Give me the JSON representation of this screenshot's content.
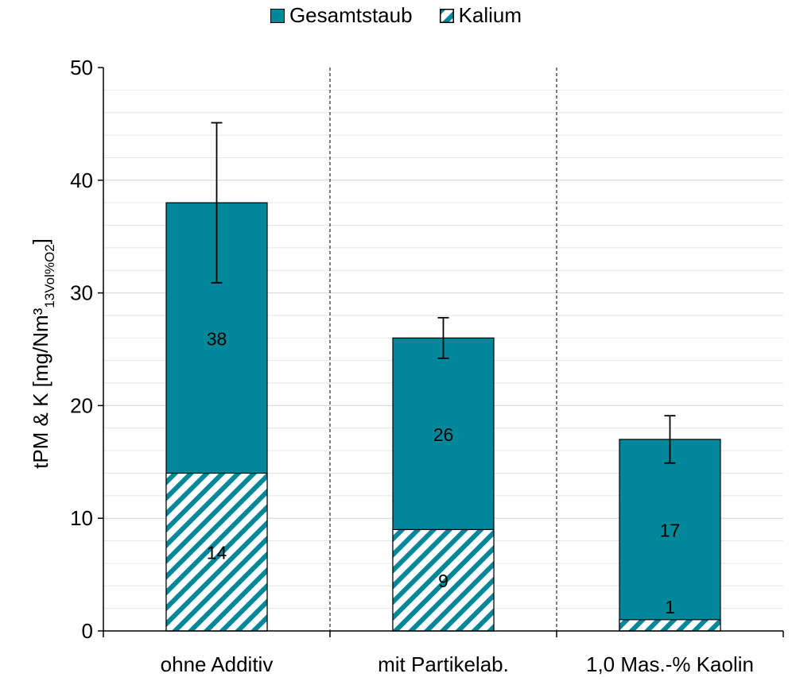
{
  "chart_data": {
    "type": "bar",
    "stacked": "overlay",
    "title": "",
    "xlabel": "",
    "ylabel": "tPM & K [mg/Nm³13Vol%O2]",
    "ylabel_main": "tPM & K [mg/Nm³",
    "ylabel_sub": "13Vol%O2",
    "ylabel_end": "]",
    "ylim": [
      0,
      50
    ],
    "yticks": [
      0,
      10,
      20,
      30,
      40,
      50
    ],
    "grid": "horizontal minor lines",
    "legend_position": "top-center",
    "categories": [
      "ohne Additiv",
      "mit Partikelab.",
      "1,0 Mas.-% Kaolin"
    ],
    "series": [
      {
        "name": "Gesamtstaub",
        "values": [
          38,
          26,
          17
        ],
        "error": [
          7.1,
          1.8,
          2.1
        ],
        "labels": [
          "38",
          "26",
          "17"
        ],
        "color": "#00889A"
      },
      {
        "name": "Kalium",
        "values": [
          14,
          9,
          1
        ],
        "labels": [
          "14",
          "9",
          "1"
        ],
        "color": "#00889A",
        "pattern": "diagonal-hatch"
      }
    ]
  }
}
